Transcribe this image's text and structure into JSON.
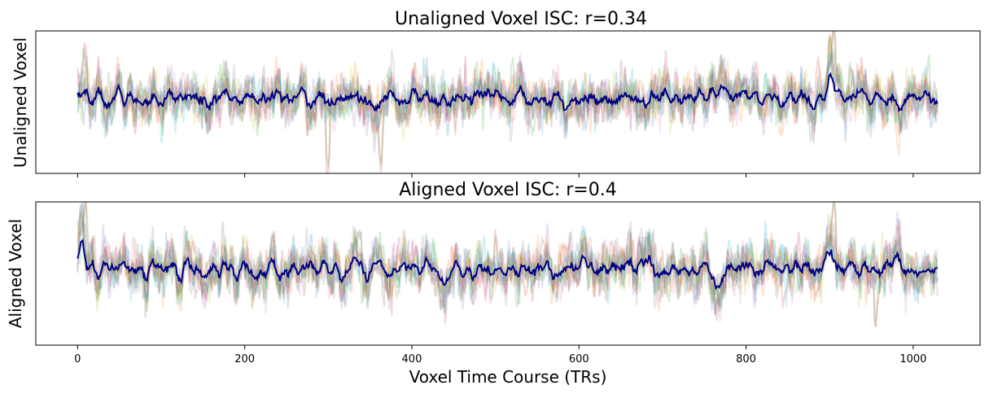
{
  "chart_data": [
    {
      "type": "line",
      "title": "Unaligned Voxel ISC: r=0.34",
      "ylabel": "Unaligned Voxel",
      "xlabel": "",
      "xlim": [
        -50,
        1080
      ],
      "ylim": [
        -3.6,
        3.2
      ],
      "x_ticks": [
        0,
        200,
        400,
        600,
        800,
        1000
      ],
      "x_tick_labels_shown": false,
      "y_ticks_shown": false,
      "n_timepoints": 1030,
      "subject_colors": [
        "#1f77b4",
        "#ff7f0e",
        "#2ca02c",
        "#d62728",
        "#9467bd",
        "#8c564b",
        "#e377c2",
        "#7f7f7f",
        "#bcbd22",
        "#17becf"
      ],
      "mean_color": "#00007f",
      "mean_peaks": [
        {
          "x": 5,
          "y": 0.7
        },
        {
          "x": 305,
          "y": -1.1
        },
        {
          "x": 440,
          "y": -0.8
        },
        {
          "x": 690,
          "y": 0.6
        },
        {
          "x": 900,
          "y": 0.7
        },
        {
          "x": 1030,
          "y": 0.1
        }
      ],
      "subject_peaks": [
        {
          "x": 8,
          "y": 2.2
        },
        {
          "x": 300,
          "y": -3.1
        },
        {
          "x": 363,
          "y": -3.3
        },
        {
          "x": 520,
          "y": 2.0
        },
        {
          "x": 905,
          "y": 2.6
        },
        {
          "x": 925,
          "y": 1.8
        }
      ]
    },
    {
      "type": "line",
      "title": "Aligned Voxel ISC: r=0.4",
      "ylabel": "Aligned Voxel",
      "xlabel": "Voxel Time Course (TRs)",
      "xlim": [
        -50,
        1080
      ],
      "ylim": [
        -3.6,
        3.2
      ],
      "x_ticks": [
        0,
        200,
        400,
        600,
        800,
        1000
      ],
      "x_tick_labels": [
        "0",
        "200",
        "400",
        "600",
        "800",
        "1000"
      ],
      "y_ticks_shown": false,
      "n_timepoints": 1030,
      "subject_colors": [
        "#1f77b4",
        "#ff7f0e",
        "#2ca02c",
        "#d62728",
        "#9467bd",
        "#8c564b",
        "#e377c2",
        "#7f7f7f",
        "#bcbd22",
        "#17becf"
      ],
      "mean_color": "#00007f",
      "mean_peaks": [
        {
          "x": 5,
          "y": 1.2
        },
        {
          "x": 440,
          "y": -0.9
        },
        {
          "x": 770,
          "y": -1.2
        },
        {
          "x": 900,
          "y": 1.3
        },
        {
          "x": 1030,
          "y": 0.4
        }
      ],
      "subject_peaks": [
        {
          "x": 10,
          "y": 2.8
        },
        {
          "x": 500,
          "y": 2.2
        },
        {
          "x": 905,
          "y": 2.6
        },
        {
          "x": 955,
          "y": -3.3
        }
      ]
    }
  ]
}
